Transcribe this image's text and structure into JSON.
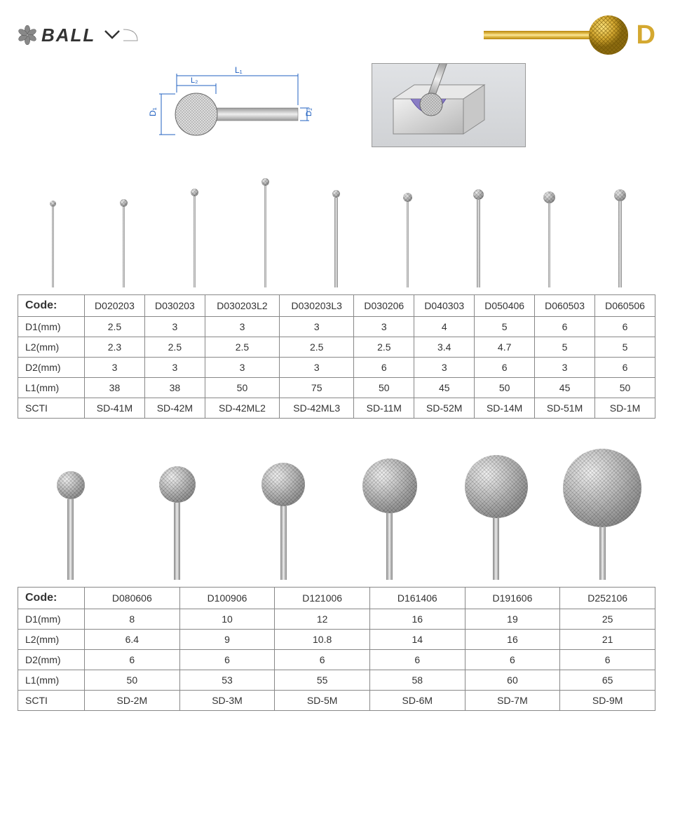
{
  "header": {
    "title": "BALL",
    "type_letter": "D"
  },
  "dim_labels": {
    "l1": "L₁",
    "l2": "L₂",
    "d1": "D₁",
    "d2": "D₂"
  },
  "table1": {
    "row_headers": [
      "Code:",
      "D1(mm)",
      "L2(mm)",
      "D2(mm)",
      "L1(mm)",
      "SCTI"
    ],
    "columns": [
      "D020203",
      "D030203",
      "D030203L2",
      "D030203L3",
      "D030206",
      "D040303",
      "D050406",
      "D060503",
      "D060506"
    ],
    "rows": [
      [
        "2.5",
        "3",
        "3",
        "3",
        "3",
        "4",
        "5",
        "6",
        "6"
      ],
      [
        "2.3",
        "2.5",
        "2.5",
        "2.5",
        "2.5",
        "3.4",
        "4.7",
        "5",
        "5"
      ],
      [
        "3",
        "3",
        "3",
        "3",
        "6",
        "3",
        "6",
        "3",
        "6"
      ],
      [
        "38",
        "38",
        "50",
        "75",
        "50",
        "45",
        "50",
        "45",
        "50"
      ],
      [
        "SD-41M",
        "SD-42M",
        "SD-42ML2",
        "SD-42ML3",
        "SD-11M",
        "SD-52M",
        "SD-14M",
        "SD-51M",
        "SD-1M"
      ]
    ],
    "burr_vis": [
      {
        "ball": 9,
        "shank_w": 3,
        "shank_h": 115
      },
      {
        "ball": 11,
        "shank_w": 3,
        "shank_h": 115
      },
      {
        "ball": 11,
        "shank_w": 3,
        "shank_h": 130
      },
      {
        "ball": 11,
        "shank_w": 3,
        "shank_h": 145
      },
      {
        "ball": 11,
        "shank_w": 5,
        "shank_h": 128
      },
      {
        "ball": 13,
        "shank_w": 3,
        "shank_h": 122
      },
      {
        "ball": 15,
        "shank_w": 5,
        "shank_h": 125
      },
      {
        "ball": 17,
        "shank_w": 3,
        "shank_h": 120
      },
      {
        "ball": 17,
        "shank_w": 5,
        "shank_h": 123
      }
    ]
  },
  "table2": {
    "row_headers": [
      "Code:",
      "D1(mm)",
      "L2(mm)",
      "D2(mm)",
      "L1(mm)",
      "SCTI"
    ],
    "columns": [
      "D080606",
      "D100906",
      "D121006",
      "D161406",
      "D191606",
      "D252106"
    ],
    "rows": [
      [
        "8",
        "10",
        "12",
        "16",
        "19",
        "25"
      ],
      [
        "6.4",
        "9",
        "10.8",
        "14",
        "16",
        "21"
      ],
      [
        "6",
        "6",
        "6",
        "6",
        "6",
        "6"
      ],
      [
        "50",
        "53",
        "55",
        "58",
        "60",
        "65"
      ],
      [
        "SD-2M",
        "SD-3M",
        "SD-5M",
        "SD-6M",
        "SD-7M",
        "SD-9M"
      ]
    ],
    "burr_vis": [
      {
        "ball": 40,
        "shank_w": 9,
        "shank_h": 115
      },
      {
        "ball": 52,
        "shank_w": 9,
        "shank_h": 110
      },
      {
        "ball": 62,
        "shank_w": 9,
        "shank_h": 105
      },
      {
        "ball": 78,
        "shank_w": 9,
        "shank_h": 95
      },
      {
        "ball": 90,
        "shank_w": 9,
        "shank_h": 88
      },
      {
        "ball": 112,
        "shank_w": 9,
        "shank_h": 75
      }
    ]
  },
  "colors": {
    "accent_gold": "#d4a830",
    "border": "#888888",
    "text": "#333333"
  }
}
